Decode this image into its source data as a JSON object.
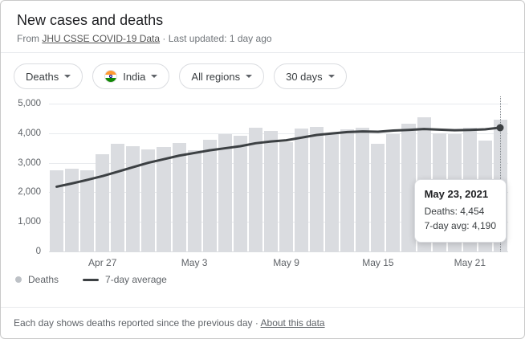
{
  "header": {
    "title": "New cases and deaths",
    "source_prefix": "From",
    "source_link": "JHU CSSE COVID-19 Data",
    "separator": "·",
    "updated_label": "Last updated:",
    "updated_value": "1 day ago"
  },
  "filters": [
    {
      "label": "Deaths"
    },
    {
      "label": "India",
      "flag_icon": "india-flag"
    },
    {
      "label": "All regions"
    },
    {
      "label": "30 days"
    }
  ],
  "chart_data": {
    "type": "bar",
    "x": [
      "Apr 24",
      "Apr 25",
      "Apr 26",
      "Apr 27",
      "Apr 28",
      "Apr 29",
      "Apr 30",
      "May 1",
      "May 2",
      "May 3",
      "May 4",
      "May 5",
      "May 6",
      "May 7",
      "May 8",
      "May 9",
      "May 10",
      "May 11",
      "May 12",
      "May 13",
      "May 14",
      "May 15",
      "May 16",
      "May 17",
      "May 18",
      "May 19",
      "May 20",
      "May 21",
      "May 22",
      "May 23"
    ],
    "series": [
      {
        "name": "Deaths",
        "type": "bar",
        "color": "#dadce0",
        "values": [
          2750,
          2800,
          2750,
          3290,
          3650,
          3550,
          3450,
          3520,
          3680,
          3420,
          3780,
          3980,
          3900,
          4190,
          4090,
          3700,
          4160,
          4200,
          4000,
          4120,
          4190,
          3650,
          3970,
          4330,
          4530,
          4000,
          3980,
          4190,
          3740,
          4454
        ]
      },
      {
        "name": "7-day average",
        "type": "line",
        "color": "#3c4043",
        "values": [
          2190,
          2300,
          2420,
          2550,
          2700,
          2850,
          3000,
          3120,
          3240,
          3330,
          3420,
          3490,
          3560,
          3660,
          3720,
          3760,
          3850,
          3940,
          3990,
          4040,
          4060,
          4050,
          4090,
          4110,
          4140,
          4120,
          4100,
          4110,
          4130,
          4190
        ]
      }
    ],
    "ylim": [
      0,
      5000
    ],
    "yticks": [
      "5,000",
      "4,000",
      "3,000",
      "2,000",
      "1,000",
      "0"
    ],
    "xticks": [
      {
        "label": "Apr 27",
        "index": 3
      },
      {
        "label": "May 3",
        "index": 9
      },
      {
        "label": "May 9",
        "index": 15
      },
      {
        "label": "May 15",
        "index": 21
      },
      {
        "label": "May 21",
        "index": 27
      }
    ],
    "grid": true,
    "legend_position": "bottom"
  },
  "tooltip": {
    "title": "May 23, 2021",
    "deaths": "Deaths: 4,454",
    "avg": "7-day avg: 4,190"
  },
  "legend": [
    {
      "label": "Deaths"
    },
    {
      "label": "7-day average"
    }
  ],
  "footer": {
    "text": "Each day shows deaths reported since the previous day",
    "separator": "·",
    "link": "About this data"
  }
}
